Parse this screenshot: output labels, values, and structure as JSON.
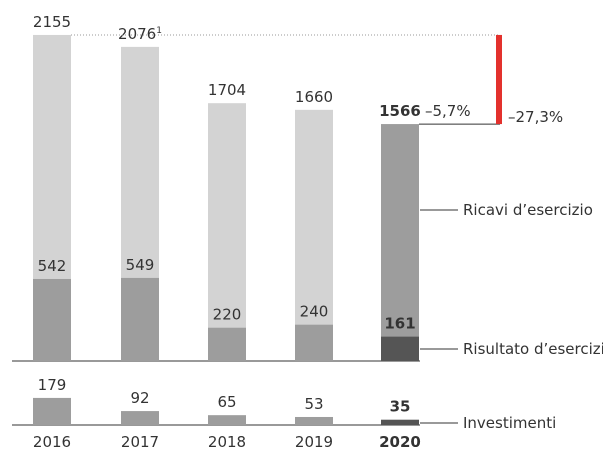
{
  "chart_data": [
    {
      "type": "overlay-bar",
      "series": [
        {
          "name": "Ricavi d’esercizio",
          "values": [
            2155,
            2076,
            1704,
            1660,
            1566
          ],
          "colors": [
            "#d3d3d3",
            "#d3d3d3",
            "#d3d3d3",
            "#d3d3d3",
            "#9d9d9d"
          ]
        },
        {
          "name": "Risultato d’esercizio",
          "values": [
            542,
            549,
            220,
            240,
            161
          ],
          "colors": [
            "#9d9d9d",
            "#9d9d9d",
            "#9d9d9d",
            "#9d9d9d",
            "#555555"
          ]
        }
      ],
      "footnote": {
        "index": 1,
        "mark": "1"
      },
      "annotations": [
        {
          "text": "–5,7%",
          "from": 3,
          "to": 4
        },
        {
          "text": "–27,3%",
          "from": 0,
          "to": 4,
          "color": "#e3312d"
        }
      ],
      "highlight_index": 4,
      "ylim": [
        0,
        2200
      ]
    },
    {
      "type": "bar",
      "categories": [
        "2016",
        "2017",
        "2018",
        "2019",
        "2020"
      ],
      "series": [
        {
          "name": "Investimenti",
          "values": [
            179,
            92,
            65,
            53,
            35
          ],
          "colors": [
            "#9d9d9d",
            "#9d9d9d",
            "#9d9d9d",
            "#9d9d9d",
            "#555555"
          ]
        }
      ],
      "highlight_index": 4,
      "ylim": [
        0,
        380
      ]
    }
  ]
}
